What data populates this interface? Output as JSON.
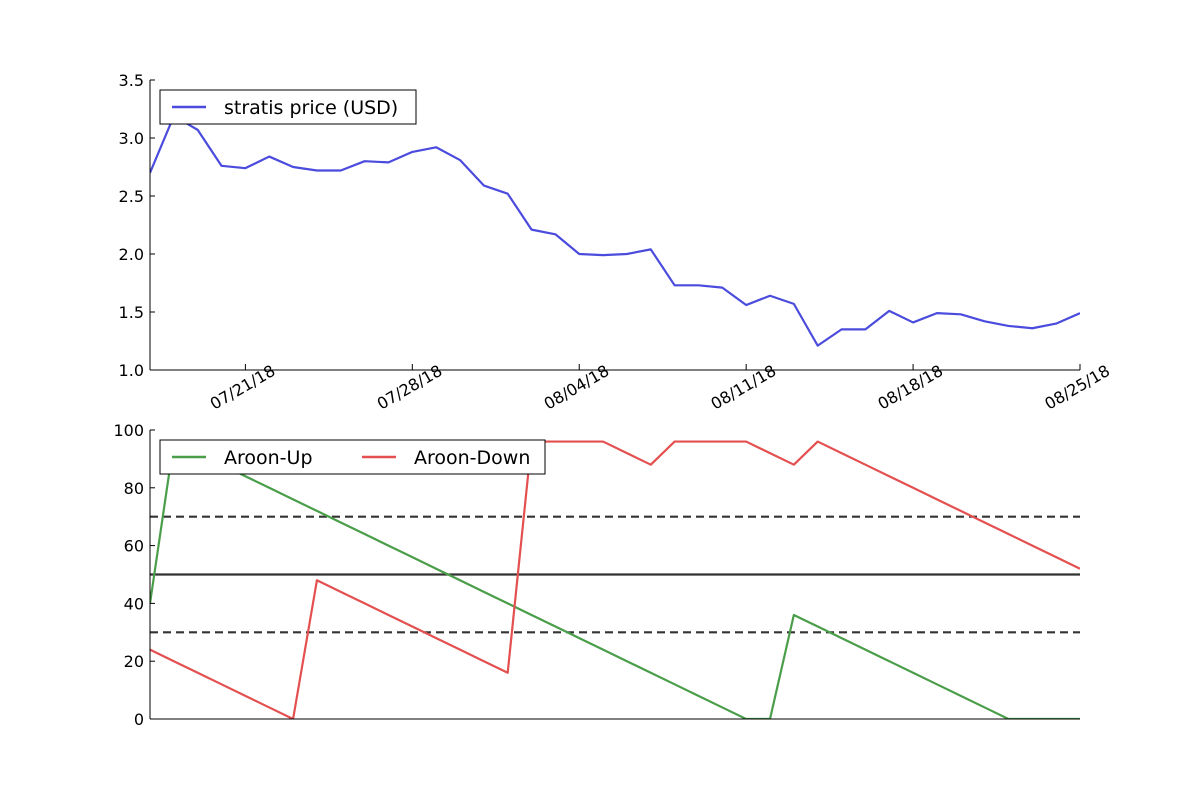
{
  "chart_data": [
    {
      "type": "line",
      "title": "",
      "xlabel": "",
      "ylabel": "",
      "x_tick_labels": [
        "07/21/18",
        "07/28/18",
        "08/04/18",
        "08/11/18",
        "08/18/18",
        "08/25/18"
      ],
      "y_tick_labels": [
        "1.0",
        "1.5",
        "2.0",
        "2.5",
        "3.0",
        "3.5"
      ],
      "ylim": [
        1.0,
        3.5
      ],
      "grid": false,
      "legend_position": "upper-left",
      "series": [
        {
          "name": "stratis price (USD)",
          "color": "#4b4bdd",
          "points": [
            [
              "07/17/18",
              2.7
            ],
            [
              "07/18/18",
              3.19
            ],
            [
              "07/19/18",
              3.07
            ],
            [
              "07/20/18",
              2.76
            ],
            [
              "07/21/18",
              2.74
            ],
            [
              "07/22/18",
              2.84
            ],
            [
              "07/23/18",
              2.75
            ],
            [
              "07/24/18",
              2.72
            ],
            [
              "07/25/18",
              2.72
            ],
            [
              "07/26/18",
              2.8
            ],
            [
              "07/27/18",
              2.79
            ],
            [
              "07/28/18",
              2.88
            ],
            [
              "07/29/18",
              2.92
            ],
            [
              "07/30/18",
              2.81
            ],
            [
              "07/31/18",
              2.59
            ],
            [
              "08/01/18",
              2.52
            ],
            [
              "08/02/18",
              2.21
            ],
            [
              "08/03/18",
              2.17
            ],
            [
              "08/04/18",
              2.0
            ],
            [
              "08/05/18",
              1.99
            ],
            [
              "08/06/18",
              2.0
            ],
            [
              "08/07/18",
              2.04
            ],
            [
              "08/08/18",
              1.73
            ],
            [
              "08/09/18",
              1.73
            ],
            [
              "08/10/18",
              1.71
            ],
            [
              "08/11/18",
              1.56
            ],
            [
              "08/12/18",
              1.64
            ],
            [
              "08/13/18",
              1.57
            ],
            [
              "08/14/18",
              1.21
            ],
            [
              "08/15/18",
              1.35
            ],
            [
              "08/16/18",
              1.35
            ],
            [
              "08/17/18",
              1.51
            ],
            [
              "08/18/18",
              1.41
            ],
            [
              "08/19/18",
              1.49
            ],
            [
              "08/20/18",
              1.48
            ],
            [
              "08/21/18",
              1.42
            ],
            [
              "08/22/18",
              1.38
            ],
            [
              "08/23/18",
              1.36
            ],
            [
              "08/24/18",
              1.4
            ],
            [
              "08/25/18",
              1.49
            ]
          ]
        }
      ]
    },
    {
      "type": "line",
      "title": "",
      "xlabel": "",
      "ylabel": "",
      "y_tick_labels": [
        "0",
        "20",
        "40",
        "60",
        "80",
        "100"
      ],
      "ylim": [
        0,
        100
      ],
      "grid": false,
      "legend_position": "upper-left",
      "reference_lines": [
        {
          "y": 70,
          "style": "dashed",
          "color": "#333333"
        },
        {
          "y": 50,
          "style": "solid",
          "color": "#333333"
        },
        {
          "y": 30,
          "style": "dashed",
          "color": "#333333"
        }
      ],
      "series": [
        {
          "name": "Aroon-Up",
          "color": "#4a9e4a",
          "points": [
            [
              "07/17/18",
              40
            ],
            [
              "07/18/18",
              96
            ],
            [
              "07/19/18",
              92
            ],
            [
              "07/20/18",
              88
            ],
            [
              "07/21/18",
              84
            ],
            [
              "07/22/18",
              80
            ],
            [
              "07/23/18",
              76
            ],
            [
              "07/24/18",
              72
            ],
            [
              "07/25/18",
              68
            ],
            [
              "07/26/18",
              64
            ],
            [
              "07/27/18",
              60
            ],
            [
              "07/28/18",
              56
            ],
            [
              "07/29/18",
              52
            ],
            [
              "07/30/18",
              48
            ],
            [
              "07/31/18",
              44
            ],
            [
              "08/01/18",
              40
            ],
            [
              "08/02/18",
              36
            ],
            [
              "08/03/18",
              32
            ],
            [
              "08/04/18",
              28
            ],
            [
              "08/05/18",
              24
            ],
            [
              "08/06/18",
              20
            ],
            [
              "08/07/18",
              16
            ],
            [
              "08/08/18",
              12
            ],
            [
              "08/09/18",
              8
            ],
            [
              "08/10/18",
              4
            ],
            [
              "08/11/18",
              0
            ],
            [
              "08/12/18",
              0
            ],
            [
              "08/13/18",
              36
            ],
            [
              "08/14/18",
              32
            ],
            [
              "08/15/18",
              28
            ],
            [
              "08/16/18",
              24
            ],
            [
              "08/17/18",
              20
            ],
            [
              "08/18/18",
              16
            ],
            [
              "08/19/18",
              12
            ],
            [
              "08/20/18",
              8
            ],
            [
              "08/21/18",
              4
            ],
            [
              "08/22/18",
              0
            ],
            [
              "08/23/18",
              0
            ],
            [
              "08/24/18",
              0
            ],
            [
              "08/25/18",
              0
            ]
          ]
        },
        {
          "name": "Aroon-Down",
          "color": "#e45050",
          "points": [
            [
              "07/17/18",
              24
            ],
            [
              "07/18/18",
              20
            ],
            [
              "07/19/18",
              16
            ],
            [
              "07/20/18",
              12
            ],
            [
              "07/21/18",
              8
            ],
            [
              "07/22/18",
              4
            ],
            [
              "07/23/18",
              0
            ],
            [
              "07/24/18",
              48
            ],
            [
              "07/25/18",
              44
            ],
            [
              "07/26/18",
              40
            ],
            [
              "07/27/18",
              36
            ],
            [
              "07/28/18",
              32
            ],
            [
              "07/29/18",
              28
            ],
            [
              "07/30/18",
              24
            ],
            [
              "07/31/18",
              20
            ],
            [
              "08/01/18",
              16
            ],
            [
              "08/02/18",
              96
            ],
            [
              "08/03/18",
              96
            ],
            [
              "08/04/18",
              96
            ],
            [
              "08/05/18",
              96
            ],
            [
              "08/06/18",
              92
            ],
            [
              "08/07/18",
              88
            ],
            [
              "08/08/18",
              96
            ],
            [
              "08/09/18",
              96
            ],
            [
              "08/10/18",
              96
            ],
            [
              "08/11/18",
              96
            ],
            [
              "08/12/18",
              92
            ],
            [
              "08/13/18",
              88
            ],
            [
              "08/14/18",
              96
            ],
            [
              "08/15/18",
              92
            ],
            [
              "08/16/18",
              88
            ],
            [
              "08/17/18",
              84
            ],
            [
              "08/18/18",
              80
            ],
            [
              "08/19/18",
              76
            ],
            [
              "08/20/18",
              72
            ],
            [
              "08/21/18",
              68
            ],
            [
              "08/22/18",
              64
            ],
            [
              "08/23/18",
              60
            ],
            [
              "08/24/18",
              56
            ],
            [
              "08/25/18",
              52
            ]
          ]
        }
      ]
    }
  ]
}
